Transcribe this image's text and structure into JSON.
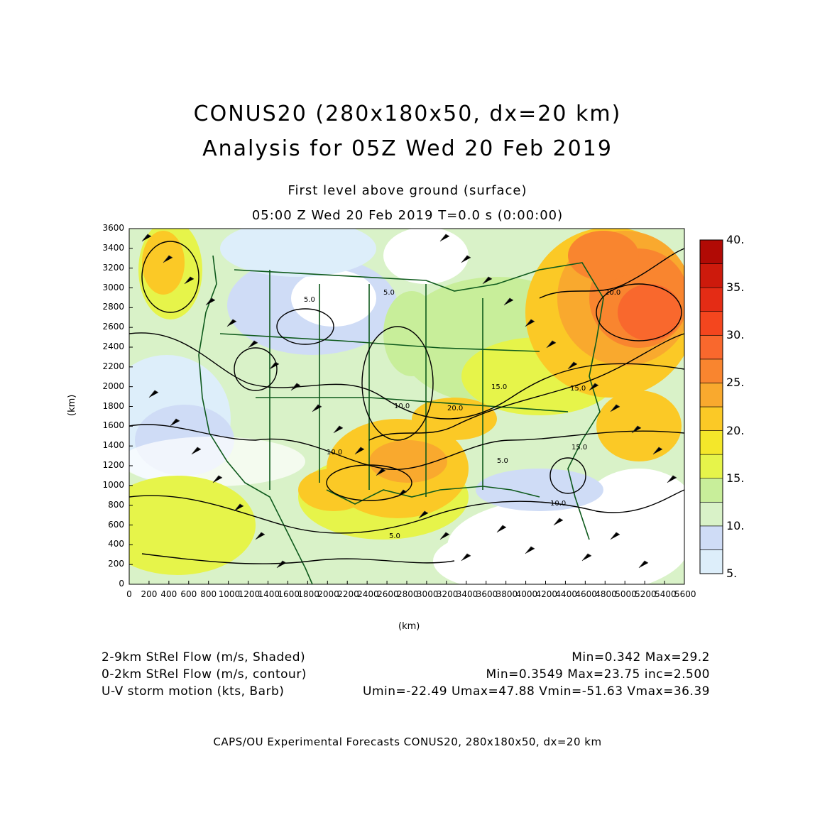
{
  "titles": {
    "line1": "CONUS20 (280x180x50, dx=20 km)",
    "line2": "Analysis for 05Z Wed 20 Feb 2019",
    "level": "First level above ground (surface)",
    "time": "05:00 Z Wed 20 Feb 2019    T=0.0 s (0:00:00)"
  },
  "axes": {
    "x_label": "(km)",
    "y_label": "(km)",
    "x_ticks": [
      "0",
      "200",
      "400",
      "600",
      "800",
      "1000",
      "1200",
      "1400",
      "1600",
      "1800",
      "2000",
      "2200",
      "2400",
      "2600",
      "2800",
      "3000",
      "3200",
      "3400",
      "3600",
      "3800",
      "4000",
      "4200",
      "4400",
      "4600",
      "4800",
      "5000",
      "5200",
      "5400",
      "5600"
    ],
    "y_ticks": [
      "0",
      "200",
      "400",
      "600",
      "800",
      "1000",
      "1200",
      "1400",
      "1600",
      "1800",
      "2000",
      "2200",
      "2400",
      "2600",
      "2800",
      "3000",
      "3200",
      "3400",
      "3600"
    ]
  },
  "colorbar": {
    "labels": [
      "5.",
      "10.",
      "15.",
      "20.",
      "25.",
      "30.",
      "35.",
      "40."
    ],
    "colors": [
      "#ddeefa",
      "#cfdcf6",
      "#d9f2c8",
      "#c8ee9a",
      "#e6f44a",
      "#f4e72a",
      "#fbc926",
      "#f9a92e",
      "#f9852f",
      "#f9682d",
      "#f4461e",
      "#e42c15",
      "#cd1a0c",
      "#b10a05"
    ]
  },
  "contour_labels": [
    "5.0",
    "5.0",
    "10.0",
    "20.0",
    "15.0",
    "15.0",
    "20.0",
    "10.0",
    "5.0",
    "10.0",
    "5.0",
    "15.0"
  ],
  "info": {
    "shaded_name": "2-9km StRel Flow (m/s, Shaded)",
    "shaded_stats": "Min=0.342  Max=29.2",
    "contour_name": "0-2km StRel Flow (m/s, contour)",
    "contour_stats": "Min=0.3549  Max=23.75  inc=2.500",
    "barb_name": "U-V storm motion (kts, Barb)",
    "barb_stats": "Umin=-22.49  Umax=47.88  Vmin=-51.63  Vmax=36.39"
  },
  "footer": "CAPS/OU Experimental Forecasts  CONUS20, 280x180x50, dx=20 km"
}
